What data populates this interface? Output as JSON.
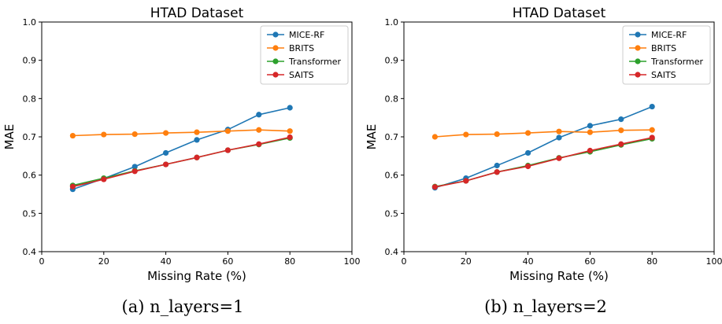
{
  "chart_data": [
    {
      "type": "line",
      "title": "HTAD Dataset",
      "xlabel": "Missing Rate (%)",
      "ylabel": "MAE",
      "xlim": [
        0,
        100
      ],
      "ylim": [
        0.4,
        1.0
      ],
      "xticks": [
        "0",
        "20",
        "40",
        "60",
        "80",
        "100"
      ],
      "yticks": [
        "0.4",
        "0.5",
        "0.6",
        "0.7",
        "0.8",
        "0.9",
        "1.0"
      ],
      "grid": false,
      "legend": "top-right",
      "caption": "(a) n_layers=1",
      "x": [
        10,
        20,
        30,
        40,
        50,
        60,
        70,
        80
      ],
      "series": [
        {
          "name": "MICE-RF",
          "color": "#1f77b4",
          "values": [
            0.563,
            0.591,
            0.622,
            0.658,
            0.692,
            0.719,
            0.758,
            0.776
          ]
        },
        {
          "name": "BRITS",
          "color": "#ff7f0e",
          "values": [
            0.703,
            0.706,
            0.707,
            0.71,
            0.712,
            0.715,
            0.718,
            0.715
          ]
        },
        {
          "name": "Transformer",
          "color": "#2ca02c",
          "values": [
            0.573,
            0.592,
            0.611,
            0.628,
            0.646,
            0.665,
            0.68,
            0.697
          ]
        },
        {
          "name": "SAITS",
          "color": "#d62728",
          "values": [
            0.57,
            0.589,
            0.61,
            0.628,
            0.646,
            0.665,
            0.681,
            0.699
          ]
        }
      ]
    },
    {
      "type": "line",
      "title": "HTAD Dataset",
      "xlabel": "Missing Rate (%)",
      "ylabel": "MAE",
      "xlim": [
        0,
        100
      ],
      "ylim": [
        0.4,
        1.0
      ],
      "xticks": [
        "0",
        "20",
        "40",
        "60",
        "80",
        "100"
      ],
      "yticks": [
        "0.4",
        "0.5",
        "0.6",
        "0.7",
        "0.8",
        "0.9",
        "1.0"
      ],
      "grid": false,
      "legend": "top-right",
      "caption": "(b) n_layers=2",
      "x": [
        10,
        20,
        30,
        40,
        50,
        60,
        70,
        80
      ],
      "series": [
        {
          "name": "MICE-RF",
          "color": "#1f77b4",
          "values": [
            0.567,
            0.592,
            0.625,
            0.658,
            0.698,
            0.729,
            0.746,
            0.779
          ]
        },
        {
          "name": "BRITS",
          "color": "#ff7f0e",
          "values": [
            0.7,
            0.706,
            0.707,
            0.71,
            0.714,
            0.712,
            0.717,
            0.718
          ]
        },
        {
          "name": "Transformer",
          "color": "#2ca02c",
          "values": [
            0.57,
            0.585,
            0.608,
            0.625,
            0.645,
            0.661,
            0.679,
            0.695
          ]
        },
        {
          "name": "SAITS",
          "color": "#d62728",
          "values": [
            0.569,
            0.585,
            0.608,
            0.623,
            0.644,
            0.664,
            0.681,
            0.698
          ]
        }
      ]
    }
  ]
}
